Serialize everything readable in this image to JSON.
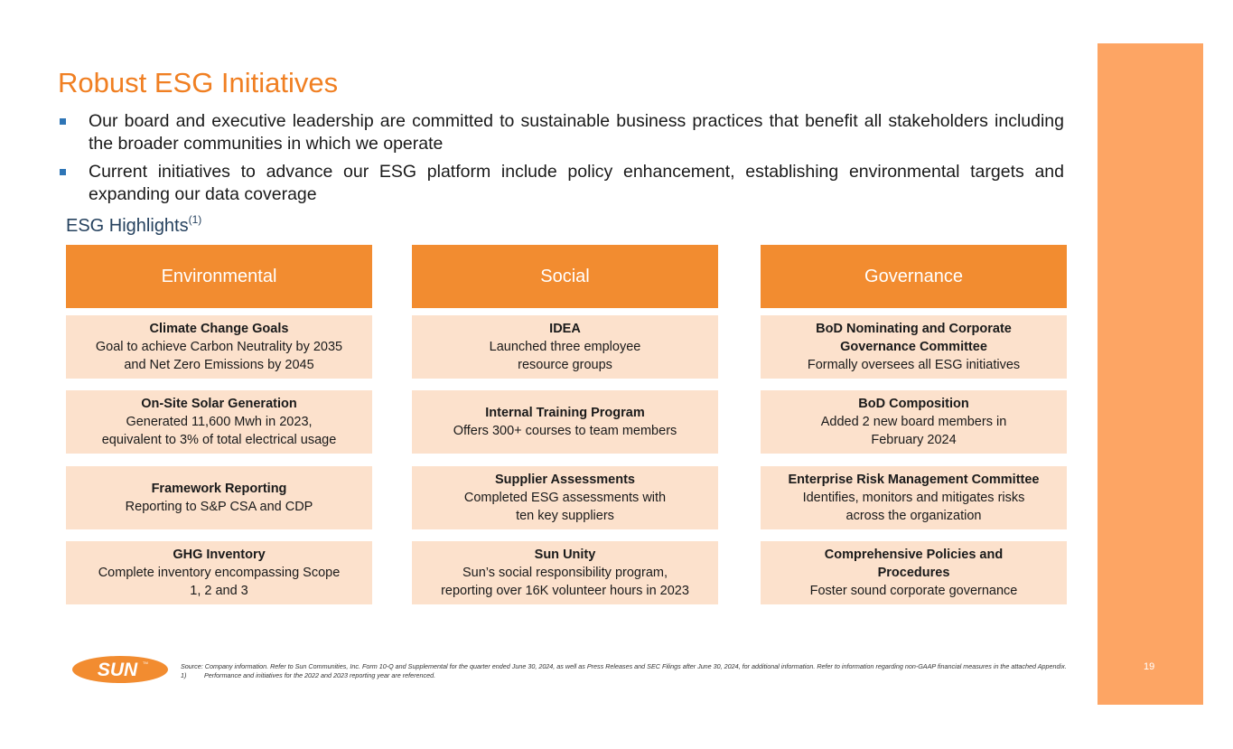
{
  "slide": {
    "title": "Robust ESG Initiatives",
    "page_number": "19",
    "bullets": [
      "Our board and executive leadership are committed to sustainable business practices that benefit all stakeholders including the broader communities in which we operate",
      "Current initiatives to advance our ESG platform include policy enhancement, establishing environmental targets and expanding our data coverage"
    ],
    "highlights_title": "ESG Highlights",
    "highlights_sup": "(1)",
    "logo_text": "SUN",
    "logo_tm": "TM",
    "colors": {
      "accent": "#F07F22",
      "header_fill": "#F28C30",
      "card_fill": "#FCE1CC",
      "side_bar": "#FDA564",
      "bullet": "#2E75B6",
      "subhead": "#26425F"
    }
  },
  "columns": [
    {
      "header": "Environmental",
      "cards": [
        {
          "title": "Climate Change Goals",
          "lines": [
            "Goal to achieve Carbon Neutrality by 2035",
            "and Net Zero Emissions by 2045"
          ]
        },
        {
          "title": "On-Site Solar Generation",
          "lines": [
            "Generated 11,600 Mwh in 2023,",
            "equivalent to 3% of total electrical usage"
          ]
        },
        {
          "title": "Framework Reporting",
          "lines": [
            "Reporting to S&P CSA and CDP"
          ]
        },
        {
          "title": "GHG Inventory",
          "lines": [
            "Complete inventory encompassing Scope",
            "1, 2 and 3"
          ]
        }
      ]
    },
    {
      "header": "Social",
      "cards": [
        {
          "title": "IDEA",
          "lines": [
            "Launched three employee",
            "resource groups"
          ]
        },
        {
          "title": "Internal Training Program",
          "lines": [
            "Offers 300+ courses to team members"
          ]
        },
        {
          "title": "Supplier Assessments",
          "lines": [
            "Completed ESG assessments with",
            "ten key suppliers"
          ]
        },
        {
          "title": "Sun Unity",
          "lines": [
            "Sun’s social responsibility program,",
            "reporting over 16K volunteer hours in 2023"
          ]
        }
      ]
    },
    {
      "header": "Governance",
      "cards": [
        {
          "title": "BoD Nominating and Corporate Governance Committee",
          "lines": [
            "Formally oversees all ESG initiatives"
          ]
        },
        {
          "title": "BoD Composition",
          "lines": [
            "Added 2 new board members in",
            "February 2024"
          ]
        },
        {
          "title": "Enterprise Risk Management Committee",
          "lines": [
            "Identifies, monitors and mitigates risks",
            "across the organization"
          ]
        },
        {
          "title": "Comprehensive Policies and Procedures",
          "lines": [
            "Foster sound corporate governance"
          ]
        }
      ]
    }
  ],
  "footnotes": {
    "source": "Source: Company information. Refer to Sun Communities, Inc. Form 10-Q and Supplemental for the quarter ended June 30, 2024, as well as Press Releases and SEC Filings after June 30, 2024, for additional information. Refer to information regarding non-GAAP financial measures in the attached Appendix.",
    "note_number": "1)",
    "note_text": "Performance and initiatives for the 2022 and 2023 reporting year are referenced."
  }
}
